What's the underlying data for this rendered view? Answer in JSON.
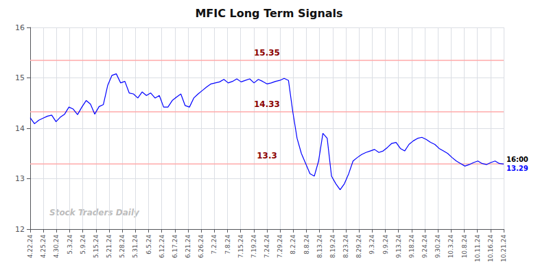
{
  "chart_data": {
    "type": "line",
    "title": "MFIC Long Term Signals",
    "watermark": "Stock Traders Daily",
    "color": "blue",
    "grid": true,
    "xlim": [
      0,
      110
    ],
    "ylim": [
      12,
      16
    ],
    "yticks": [
      12,
      13,
      14,
      15,
      16
    ],
    "xticks": [
      {
        "value": 0,
        "label": "4.22.24"
      },
      {
        "value": 3.055556,
        "label": "4.25.24"
      },
      {
        "value": 6.111111,
        "label": "4.30.24"
      },
      {
        "value": 9.166667,
        "label": "5.3.24"
      },
      {
        "value": 12.222222,
        "label": "5.9.24"
      },
      {
        "value": 15.277778,
        "label": "5.15.24"
      },
      {
        "value": 18.333333,
        "label": "5.21.24"
      },
      {
        "value": 21.388889,
        "label": "5.28.24"
      },
      {
        "value": 24.444444,
        "label": "5.31.24"
      },
      {
        "value": 27.5,
        "label": "6.5.24"
      },
      {
        "value": 30.555556,
        "label": "6.12.24"
      },
      {
        "value": 33.611111,
        "label": "6.17.24"
      },
      {
        "value": 36.666667,
        "label": "6.21.24"
      },
      {
        "value": 39.722222,
        "label": "6.26.24"
      },
      {
        "value": 42.777778,
        "label": "7.2.24"
      },
      {
        "value": 45.833333,
        "label": "7.8.24"
      },
      {
        "value": 48.888889,
        "label": "7.15.24"
      },
      {
        "value": 51.944444,
        "label": "7.19.24"
      },
      {
        "value": 55,
        "label": "7.24.24"
      },
      {
        "value": 58.055556,
        "label": "7.29.24"
      },
      {
        "value": 61.111111,
        "label": "8.2.24"
      },
      {
        "value": 64.166667,
        "label": "8.8.24"
      },
      {
        "value": 67.222222,
        "label": "8.13.24"
      },
      {
        "value": 70.277778,
        "label": "8.19.24"
      },
      {
        "value": 73.333333,
        "label": "8.23.24"
      },
      {
        "value": 76.388889,
        "label": "8.29.24"
      },
      {
        "value": 79.444444,
        "label": "9.3.24"
      },
      {
        "value": 82.5,
        "label": "9.9.24"
      },
      {
        "value": 85.555556,
        "label": "9.13.24"
      },
      {
        "value": 88.611111,
        "label": "9.18.24"
      },
      {
        "value": 91.666667,
        "label": "9.24.24"
      },
      {
        "value": 94.722222,
        "label": "9.30.24"
      },
      {
        "value": 97.777778,
        "label": "10.3.24"
      },
      {
        "value": 100.833333,
        "label": "10.8.24"
      },
      {
        "value": 103.888889,
        "label": "10.11.24"
      },
      {
        "value": 106.944444,
        "label": "10.16.24"
      },
      {
        "value": 110,
        "label": "10.21.24"
      }
    ],
    "hlines": [
      {
        "value": 15.35,
        "label": "15.35",
        "color": "#ffaaaa",
        "label_color": "#8b0000"
      },
      {
        "value": 14.33,
        "label": "14.33",
        "color": "#ffaaaa",
        "label_color": "#8b0000"
      },
      {
        "value": 13.3,
        "label": "13.3",
        "color": "#ffaaaa",
        "label_color": "#8b0000"
      }
    ],
    "end_label": "16:00",
    "end_value": 13.29,
    "x": [
      0,
      1,
      2,
      3,
      4,
      5,
      6,
      7,
      8,
      9,
      10,
      11,
      12,
      13,
      14,
      15,
      16,
      17,
      18,
      19,
      20,
      21,
      22,
      23,
      24,
      25,
      26,
      27,
      28,
      29,
      30,
      31,
      32,
      33,
      34,
      35,
      36,
      37,
      38,
      39,
      40,
      41,
      42,
      43,
      44,
      45,
      46,
      47,
      48,
      49,
      50,
      51,
      52,
      53,
      54,
      55,
      56,
      57,
      58,
      59,
      60,
      61,
      62,
      63,
      64,
      65,
      66,
      67,
      68,
      69,
      70,
      71,
      72,
      73,
      74,
      75,
      76,
      77,
      78,
      79,
      80,
      81,
      82,
      83,
      84,
      85,
      86,
      87,
      88,
      89,
      90,
      91,
      92,
      93,
      94,
      95,
      96,
      97,
      98,
      99,
      100,
      101,
      102,
      103,
      104,
      105,
      106,
      107,
      108,
      109,
      110
    ],
    "values": [
      14.21,
      14.09,
      14.16,
      14.2,
      14.24,
      14.26,
      14.13,
      14.22,
      14.28,
      14.42,
      14.38,
      14.27,
      14.42,
      14.55,
      14.48,
      14.28,
      14.43,
      14.47,
      14.85,
      15.05,
      15.08,
      14.9,
      14.93,
      14.7,
      14.68,
      14.6,
      14.72,
      14.65,
      14.7,
      14.6,
      14.65,
      14.42,
      14.42,
      14.55,
      14.62,
      14.68,
      14.45,
      14.42,
      14.6,
      14.68,
      14.75,
      14.82,
      14.88,
      14.9,
      14.92,
      14.97,
      14.9,
      14.93,
      14.98,
      14.92,
      14.95,
      14.98,
      14.9,
      14.97,
      14.93,
      14.88,
      14.9,
      14.93,
      14.95,
      14.99,
      14.95,
      14.33,
      13.8,
      13.5,
      13.3,
      13.1,
      13.05,
      13.35,
      13.9,
      13.8,
      13.05,
      12.9,
      12.78,
      12.9,
      13.1,
      13.35,
      13.42,
      13.48,
      13.52,
      13.55,
      13.58,
      13.52,
      13.55,
      13.62,
      13.7,
      13.72,
      13.6,
      13.55,
      13.68,
      13.75,
      13.8,
      13.82,
      13.78,
      13.72,
      13.68,
      13.6,
      13.55,
      13.5,
      13.42,
      13.35,
      13.3,
      13.25,
      13.28,
      13.32,
      13.35,
      13.3,
      13.28,
      13.32,
      13.35,
      13.3,
      13.29
    ]
  }
}
